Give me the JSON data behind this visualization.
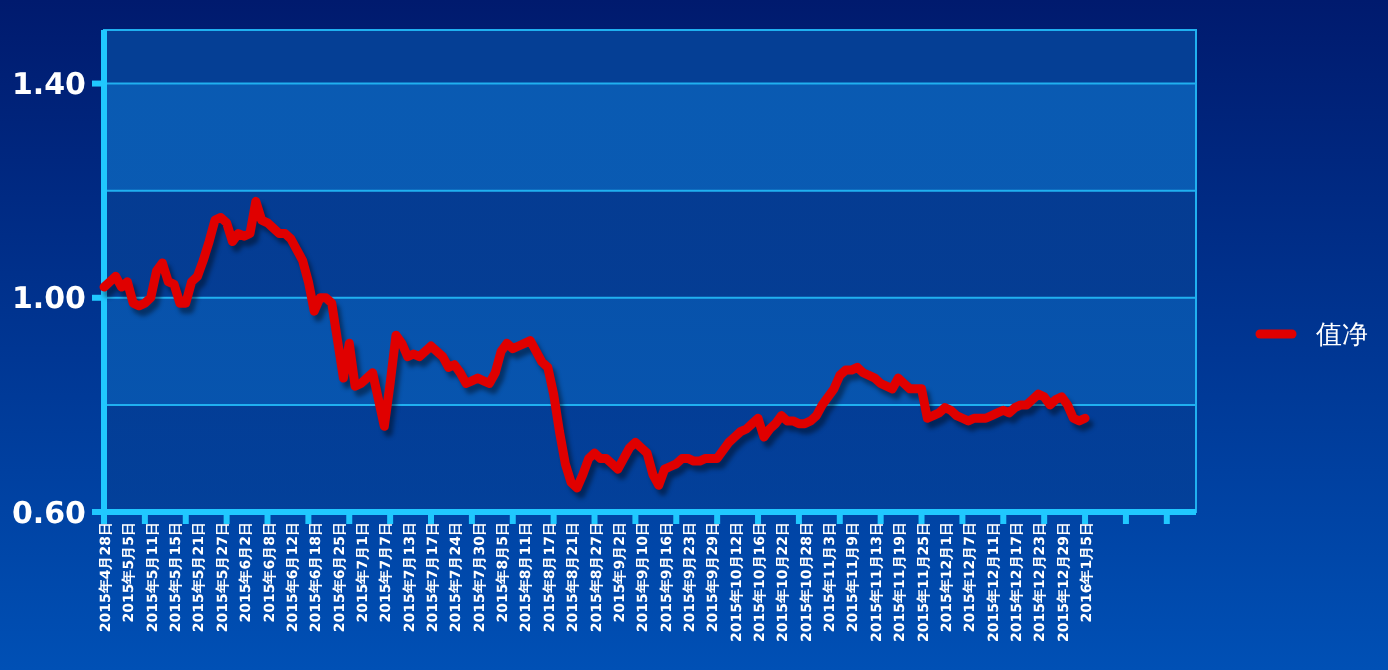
{
  "chart_data": {
    "type": "line",
    "categories": [
      "2015年4月28日",
      null,
      null,
      null,
      "2015年5月5日",
      null,
      null,
      null,
      "2015年5月11日",
      null,
      null,
      null,
      "2015年5月15日",
      null,
      null,
      null,
      "2015年5月21日",
      null,
      null,
      null,
      "2015年5月27日",
      null,
      null,
      null,
      "2015年6月2日",
      null,
      null,
      null,
      "2015年6月8日",
      null,
      null,
      null,
      "2015年6月12日",
      null,
      null,
      null,
      "2015年6月18日",
      null,
      null,
      null,
      "2015年6月25日",
      null,
      null,
      null,
      "2015年7月1日",
      null,
      null,
      null,
      "2015年7月7日",
      null,
      null,
      null,
      "2015年7月13日",
      null,
      null,
      null,
      "2015年7月17日",
      null,
      null,
      null,
      "2015年7月24日",
      null,
      null,
      null,
      "2015年7月30日",
      null,
      null,
      null,
      "2015年8月5日",
      null,
      null,
      null,
      "2015年8月11日",
      null,
      null,
      null,
      "2015年8月17日",
      null,
      null,
      null,
      "2015年8月21日",
      null,
      null,
      null,
      "2015年8月27日",
      null,
      null,
      null,
      "2015年9月2日",
      null,
      null,
      null,
      "2015年9月10日",
      null,
      null,
      null,
      "2015年9月16日",
      null,
      null,
      null,
      "2015年9月23日",
      null,
      null,
      null,
      "2015年9月29日",
      null,
      null,
      null,
      "2015年10月12日",
      null,
      null,
      null,
      "2015年10月16日",
      null,
      null,
      null,
      "2015年10月22日",
      null,
      null,
      null,
      "2015年10月28日",
      null,
      null,
      null,
      "2015年11月3日",
      null,
      null,
      null,
      "2015年11月9日",
      null,
      null,
      null,
      "2015年11月13日",
      null,
      null,
      null,
      "2015年11月19日",
      null,
      null,
      null,
      "2015年11月25日",
      null,
      null,
      null,
      "2015年12月1日",
      null,
      null,
      null,
      "2015年12月7日",
      null,
      null,
      null,
      "2015年12月11日",
      null,
      null,
      null,
      "2015年12月17日",
      null,
      null,
      null,
      "2015年12月23日",
      null,
      null,
      null,
      "2015年12月29日",
      null,
      null,
      null,
      "2016年1月5日",
      null,
      null,
      null,
      null,
      null,
      null,
      null,
      null,
      null,
      null,
      null,
      null,
      null,
      null,
      null,
      null,
      null,
      null,
      null
    ],
    "series": [
      {
        "name": "值净",
        "color": "#e00000",
        "values": [
          1.02,
          1.03,
          1.04,
          1.02,
          1.03,
          0.99,
          0.985,
          0.99,
          1.0,
          1.05,
          1.065,
          1.03,
          1.025,
          0.99,
          0.99,
          1.03,
          1.04,
          1.07,
          1.105,
          1.145,
          1.15,
          1.14,
          1.105,
          1.12,
          1.115,
          1.12,
          1.18,
          1.145,
          1.14,
          1.13,
          1.12,
          1.12,
          1.11,
          1.09,
          1.07,
          1.03,
          0.975,
          1.0,
          1.0,
          0.99,
          0.92,
          0.85,
          0.915,
          0.835,
          0.84,
          0.85,
          0.86,
          0.81,
          0.76,
          0.84,
          0.93,
          0.915,
          0.89,
          0.895,
          0.89,
          0.9,
          0.91,
          0.9,
          0.89,
          0.87,
          0.875,
          0.86,
          0.84,
          0.845,
          0.85,
          0.845,
          0.84,
          0.86,
          0.9,
          0.915,
          0.905,
          0.91,
          0.915,
          0.92,
          0.9,
          0.88,
          0.87,
          0.82,
          0.75,
          0.69,
          0.655,
          0.645,
          0.67,
          0.7,
          0.71,
          0.7,
          0.7,
          0.69,
          0.68,
          0.7,
          0.72,
          0.73,
          0.72,
          0.71,
          0.67,
          0.65,
          0.68,
          0.685,
          0.69,
          0.7,
          0.7,
          0.695,
          0.695,
          0.7,
          0.7,
          0.7,
          0.715,
          0.73,
          0.74,
          0.75,
          0.755,
          0.765,
          0.775,
          0.74,
          0.755,
          0.765,
          0.78,
          0.77,
          0.77,
          0.765,
          0.765,
          0.77,
          0.78,
          0.8,
          0.815,
          0.83,
          0.855,
          0.865,
          0.865,
          0.87,
          0.86,
          0.855,
          0.85,
          0.84,
          0.835,
          0.83,
          0.85,
          0.84,
          0.83,
          0.83,
          0.83,
          0.775,
          0.78,
          0.785,
          0.795,
          0.79,
          0.78,
          0.775,
          0.77,
          0.775,
          0.775,
          0.775,
          0.78,
          0.785,
          0.79,
          0.785,
          0.795,
          0.8,
          0.8,
          0.81,
          0.82,
          0.815,
          0.8,
          0.81,
          0.815,
          0.8,
          0.775,
          0.77,
          0.775,
          null,
          null,
          null,
          null,
          null,
          null,
          null,
          null,
          null,
          null,
          null,
          null,
          null,
          null,
          null,
          null,
          null,
          null,
          null
        ]
      }
    ],
    "ylim": [
      0.6,
      1.5
    ],
    "yticks": [
      {
        "value": 0.6,
        "label": "0.60"
      },
      {
        "value": 0.8,
        "label": null
      },
      {
        "value": 1.0,
        "label": "1.00"
      },
      {
        "value": 1.2,
        "label": null
      },
      {
        "value": 1.4,
        "label": "1.40"
      }
    ],
    "grid": "y",
    "legend": "right",
    "marker": "none",
    "line_style": "solid"
  }
}
